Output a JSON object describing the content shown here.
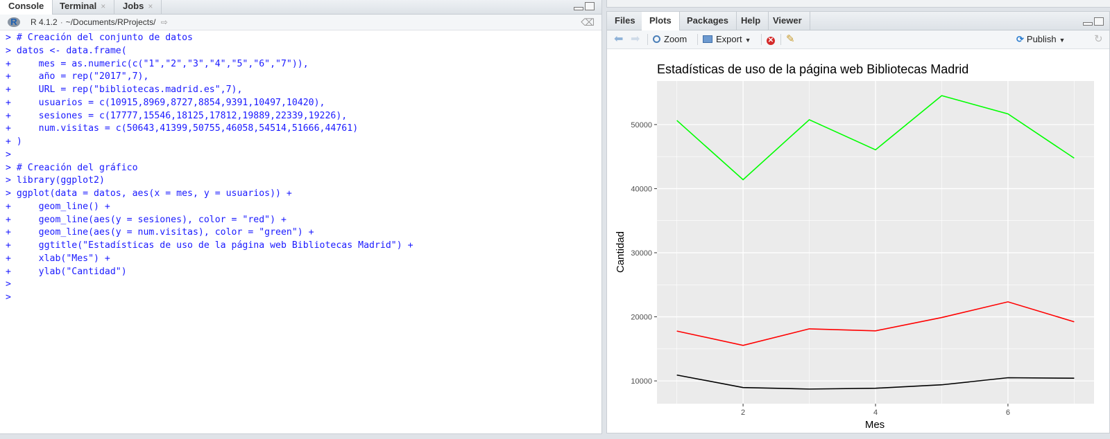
{
  "left_pane": {
    "tabs": [
      {
        "label": "Console",
        "closable": false
      },
      {
        "label": "Terminal",
        "closable": true
      },
      {
        "label": "Jobs",
        "closable": true
      }
    ],
    "close_glyph": "×",
    "r_version": "R 4.1.2",
    "separator": "·",
    "path": "~/Documents/RProjects/",
    "console_lines": [
      "> # Creación del conjunto de datos",
      "> datos <- data.frame(",
      "+     mes = as.numeric(c(\"1\",\"2\",\"3\",\"4\",\"5\",\"6\",\"7\")),",
      "+     año = rep(\"2017\",7),",
      "+     URL = rep(\"bibliotecas.madrid.es\",7),",
      "+     usuarios = c(10915,8969,8727,8854,9391,10497,10420),",
      "+     sesiones = c(17777,15546,18125,17812,19889,22339,19226),",
      "+     num.visitas = c(50643,41399,50755,46058,54514,51666,44761)",
      "+ )",
      ">",
      "> # Creación del gráfico",
      "> library(ggplot2)",
      "> ggplot(data = datos, aes(x = mes, y = usuarios)) +",
      "+     geom_line() +",
      "+     geom_line(aes(y = sesiones), color = \"red\") +",
      "+     geom_line(aes(y = num.visitas), color = \"green\") +",
      "+     ggtitle(\"Estadísticas de uso de la página web Bibliotecas Madrid\") +",
      "+     xlab(\"Mes\") +",
      "+     ylab(\"Cantidad\")",
      ">",
      ">"
    ]
  },
  "right_pane": {
    "tabs": [
      "Files",
      "Plots",
      "Packages",
      "Help",
      "Viewer"
    ],
    "active_tab": "Plots",
    "toolbar": {
      "zoom_label": "Zoom",
      "export_label": "Export",
      "publish_label": "Publish"
    }
  },
  "icons": {
    "r_logo": "r-logo-icon",
    "back": "arrow-left-icon",
    "forward": "arrow-right-icon",
    "zoom": "zoom-icon",
    "export": "export-icon",
    "clear": "clear-plot-icon",
    "broom": "broom-icon",
    "publish": "publish-icon",
    "refresh": "refresh-icon"
  },
  "chart_data": {
    "type": "line",
    "title": "Estadísticas de uso de la página web Bibliotecas Madrid",
    "xlabel": "Mes",
    "ylabel": "Cantidad",
    "x": [
      1,
      2,
      3,
      4,
      5,
      6,
      7
    ],
    "xticks": [
      2,
      4,
      6
    ],
    "yticks": [
      10000,
      20000,
      30000,
      40000,
      50000
    ],
    "xlim": [
      0.7,
      7.3
    ],
    "ylim": [
      6445,
      56795
    ],
    "grid": true,
    "legend": "none",
    "background": "#ebebeb",
    "series": [
      {
        "color": "#000000",
        "values": [
          10915,
          8969,
          8727,
          8854,
          9391,
          10497,
          10420
        ]
      },
      {
        "color": "#ff0000",
        "values": [
          17777,
          15546,
          18125,
          17812,
          19889,
          22339,
          19226
        ]
      },
      {
        "color": "#00ff00",
        "values": [
          50643,
          41399,
          50755,
          46058,
          54514,
          51666,
          44761
        ]
      }
    ]
  }
}
